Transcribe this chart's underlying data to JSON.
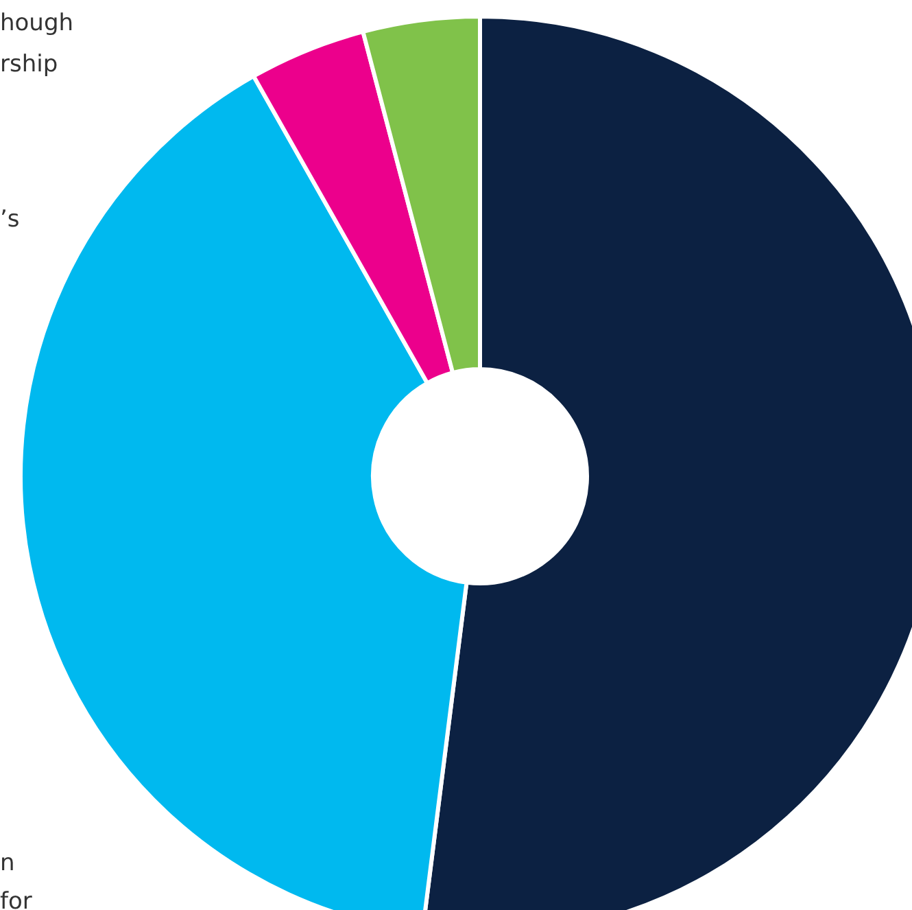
{
  "chart_data": {
    "type": "donut",
    "categories": [
      null,
      null,
      null,
      null
    ],
    "values": [
      52,
      39.8,
      4.1,
      4.1
    ],
    "colors": [
      "#0c2142",
      "#00b9ef",
      "#ec008c",
      "#80c24a"
    ],
    "annotations": [
      "hough",
      "rship",
      "’s",
      "n",
      "for"
    ],
    "legend": false
  }
}
